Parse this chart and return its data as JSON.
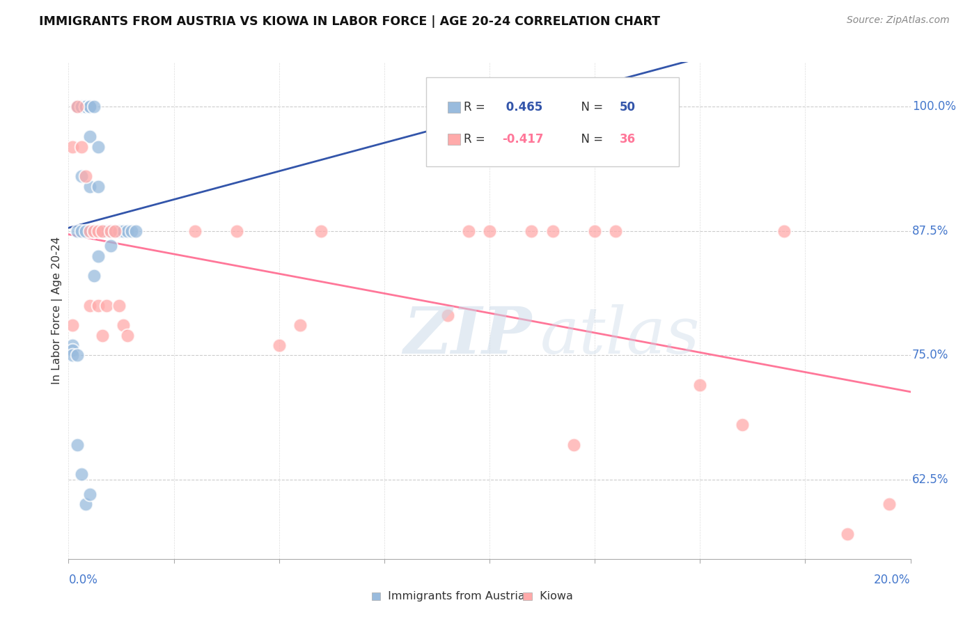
{
  "title": "IMMIGRANTS FROM AUSTRIA VS KIOWA IN LABOR FORCE | AGE 20-24 CORRELATION CHART",
  "source": "Source: ZipAtlas.com",
  "ylabel": "In Labor Force | Age 20-24",
  "ytick_labels": [
    "62.5%",
    "75.0%",
    "87.5%",
    "100.0%"
  ],
  "ytick_vals": [
    0.625,
    0.75,
    0.875,
    1.0
  ],
  "xtick_labels": [
    "0.0%",
    "20.0%"
  ],
  "xlim": [
    0.0,
    0.2
  ],
  "ylim": [
    0.545,
    1.045
  ],
  "legend_r1": "R =  0.465",
  "legend_n1": "N = 50",
  "legend_r2": "R = -0.417",
  "legend_n2": "N = 36",
  "color_austria": "#99BBDD",
  "color_kiowa": "#FFAAAA",
  "color_austria_line": "#3355AA",
  "color_kiowa_line": "#FF7799",
  "color_ytick": "#4477CC",
  "color_xtick": "#4477CC",
  "austria_x": [
    0.001,
    0.001,
    0.001,
    0.002,
    0.002,
    0.002,
    0.002,
    0.003,
    0.003,
    0.003,
    0.003,
    0.003,
    0.004,
    0.004,
    0.004,
    0.004,
    0.004,
    0.005,
    0.005,
    0.005,
    0.005,
    0.005,
    0.005,
    0.006,
    0.006,
    0.006,
    0.006,
    0.007,
    0.007,
    0.007,
    0.007,
    0.008,
    0.008,
    0.008,
    0.009,
    0.009,
    0.01,
    0.01,
    0.011,
    0.012,
    0.012,
    0.013,
    0.014,
    0.015,
    0.016,
    0.002,
    0.003,
    0.004,
    0.005,
    0.006
  ],
  "austria_y": [
    0.76,
    0.755,
    0.75,
    1.0,
    1.0,
    0.875,
    0.75,
    1.0,
    1.0,
    1.0,
    0.93,
    0.875,
    1.0,
    1.0,
    1.0,
    1.0,
    0.875,
    1.0,
    1.0,
    1.0,
    1.0,
    0.97,
    0.92,
    1.0,
    0.875,
    0.875,
    0.83,
    0.96,
    0.92,
    0.875,
    0.85,
    0.875,
    0.875,
    0.875,
    0.875,
    0.875,
    0.875,
    0.86,
    0.875,
    0.875,
    0.875,
    0.875,
    0.875,
    0.875,
    0.875,
    0.66,
    0.63,
    0.6,
    0.61,
    0.875
  ],
  "kiowa_x": [
    0.001,
    0.001,
    0.002,
    0.003,
    0.004,
    0.005,
    0.005,
    0.006,
    0.007,
    0.007,
    0.008,
    0.008,
    0.009,
    0.01,
    0.011,
    0.012,
    0.013,
    0.014,
    0.03,
    0.04,
    0.05,
    0.055,
    0.06,
    0.09,
    0.095,
    0.1,
    0.11,
    0.115,
    0.12,
    0.125,
    0.13,
    0.15,
    0.16,
    0.17,
    0.185,
    0.195
  ],
  "kiowa_y": [
    0.96,
    0.78,
    1.0,
    0.96,
    0.93,
    0.875,
    0.8,
    0.875,
    0.875,
    0.8,
    0.875,
    0.77,
    0.8,
    0.875,
    0.875,
    0.8,
    0.78,
    0.77,
    0.875,
    0.875,
    0.76,
    0.78,
    0.875,
    0.79,
    0.875,
    0.875,
    0.875,
    0.875,
    0.66,
    0.875,
    0.875,
    0.72,
    0.68,
    0.875,
    0.57,
    0.6
  ]
}
